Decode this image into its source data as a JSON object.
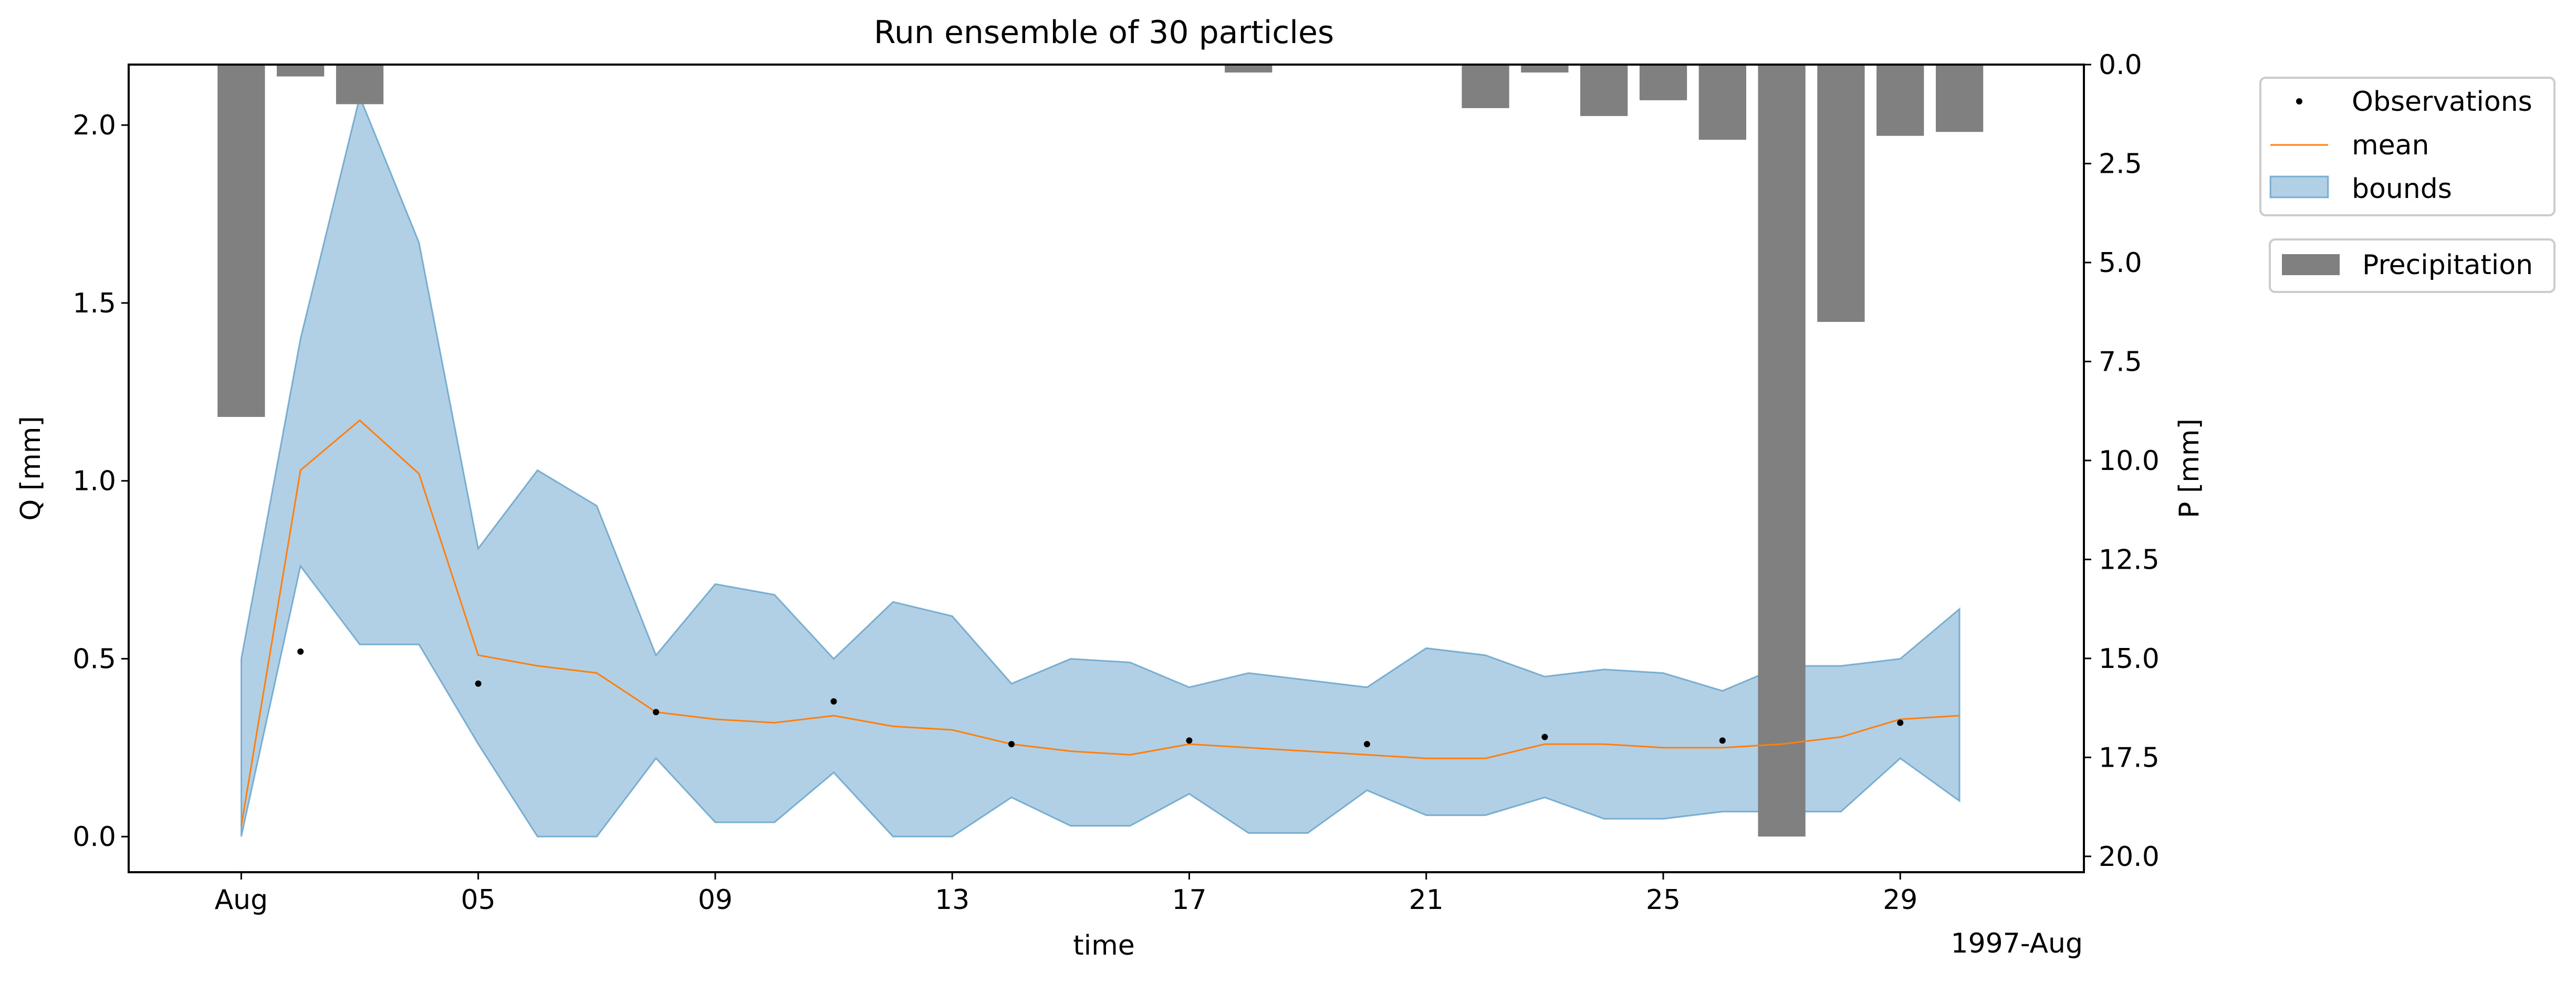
{
  "chart_data": {
    "type": "line",
    "title": "Run ensemble of 30 particles",
    "xlabel": "time",
    "x_offset_label": "1997-Aug",
    "ylabel_left": "Q [mm]",
    "ylabel_right": "P [mm]",
    "x_days": [
      1,
      2,
      3,
      4,
      5,
      6,
      7,
      8,
      9,
      10,
      11,
      12,
      13,
      14,
      15,
      16,
      17,
      18,
      19,
      20,
      21,
      22,
      23,
      24,
      25,
      26,
      27,
      28,
      29,
      30
    ],
    "x_ticks": [
      {
        "day": 1,
        "label": "Aug"
      },
      {
        "day": 5,
        "label": "05"
      },
      {
        "day": 9,
        "label": "09"
      },
      {
        "day": 13,
        "label": "13"
      },
      {
        "day": 17,
        "label": "17"
      },
      {
        "day": 21,
        "label": "21"
      },
      {
        "day": 25,
        "label": "25"
      },
      {
        "day": 29,
        "label": "29"
      }
    ],
    "xlim": [
      -0.9,
      32.1
    ],
    "ylim_left": [
      -0.1,
      2.17
    ],
    "yticks_left": [
      "0.0",
      "0.5",
      "1.0",
      "1.5",
      "2.0"
    ],
    "ylim_right_inverted": [
      20.4,
      0
    ],
    "yticks_right": [
      "0.0",
      "2.5",
      "5.0",
      "7.5",
      "10.0",
      "12.5",
      "15.0",
      "17.5",
      "20.0"
    ],
    "series": [
      {
        "name": "mean",
        "color": "#ff7f0e",
        "values": [
          0.03,
          1.03,
          1.17,
          1.02,
          0.51,
          0.48,
          0.46,
          0.35,
          0.33,
          0.32,
          0.34,
          0.31,
          0.3,
          0.26,
          0.24,
          0.23,
          0.26,
          0.25,
          0.24,
          0.23,
          0.22,
          0.22,
          0.26,
          0.26,
          0.25,
          0.25,
          0.26,
          0.28,
          0.33,
          0.34
        ]
      },
      {
        "name": "bounds",
        "color": "#1f77b4",
        "upper": [
          0.5,
          1.4,
          2.08,
          1.67,
          0.81,
          1.03,
          0.93,
          0.51,
          0.71,
          0.68,
          0.5,
          0.66,
          0.62,
          0.43,
          0.5,
          0.49,
          0.42,
          0.46,
          0.44,
          0.42,
          0.53,
          0.51,
          0.45,
          0.47,
          0.46,
          0.41,
          0.48,
          0.48,
          0.5,
          0.64
        ],
        "lower": [
          0.0,
          0.76,
          0.54,
          0.54,
          0.26,
          0.0,
          0.0,
          0.22,
          0.04,
          0.04,
          0.18,
          0.0,
          0.0,
          0.11,
          0.03,
          0.03,
          0.12,
          0.01,
          0.01,
          0.13,
          0.06,
          0.06,
          0.11,
          0.05,
          0.05,
          0.07,
          0.07,
          0.07,
          0.22,
          0.1
        ]
      },
      {
        "name": "Observations",
        "color": "#000000",
        "points": [
          {
            "day": 2,
            "value": 0.52
          },
          {
            "day": 5,
            "value": 0.43
          },
          {
            "day": 8,
            "value": 0.35
          },
          {
            "day": 11,
            "value": 0.38
          },
          {
            "day": 14,
            "value": 0.26
          },
          {
            "day": 17,
            "value": 0.27
          },
          {
            "day": 20,
            "value": 0.26
          },
          {
            "day": 23,
            "value": 0.28
          },
          {
            "day": 26,
            "value": 0.27
          },
          {
            "day": 29,
            "value": 0.32
          }
        ]
      },
      {
        "name": "Precipitation",
        "color": "#808080",
        "values": [
          8.9,
          0.3,
          1.0,
          0,
          0,
          0,
          0,
          0,
          0,
          0,
          0,
          0,
          0,
          0,
          0,
          0,
          0,
          0.2,
          0,
          0,
          0,
          1.1,
          0.2,
          1.3,
          0.9,
          1.9,
          19.5,
          6.5,
          1.8,
          1.7
        ]
      }
    ],
    "legend_main": [
      "Observations",
      "mean",
      "bounds"
    ],
    "legend_secondary": [
      "Precipitation"
    ],
    "legend_placement": "right, outside plot"
  }
}
